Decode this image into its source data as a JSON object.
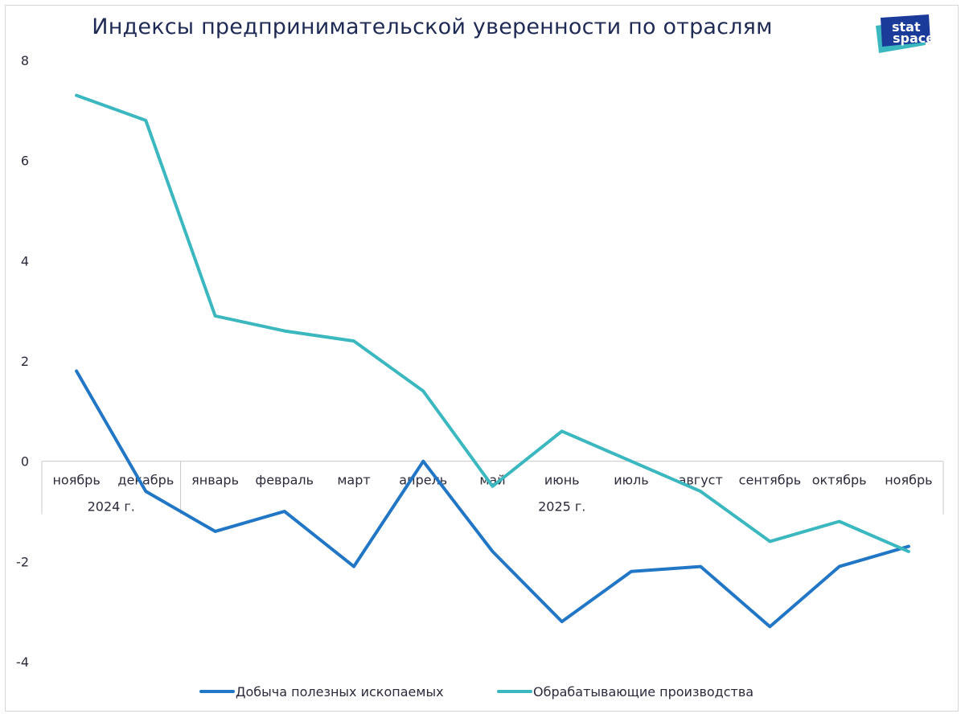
{
  "title": "Индексы предпринимательской уверенности по отраслям",
  "logo": {
    "line1": "stat",
    "line2": "space",
    "colors": [
      "#1b3b9a",
      "#2fb3c2"
    ]
  },
  "chart_data": {
    "type": "line",
    "title": "Индексы предпринимательской уверенности по отраслям",
    "categories": [
      "ноябрь",
      "декабрь",
      "январь",
      "февраль",
      "март",
      "апрель",
      "май",
      "июнь",
      "июль",
      "август",
      "сентябрь",
      "октябрь",
      "ноябрь"
    ],
    "year_groups": [
      {
        "label": "2024 г.",
        "span": 2
      },
      {
        "label": "2025 г.",
        "span": 11
      }
    ],
    "ylim": [
      -4,
      8
    ],
    "yticks": [
      -4,
      -2,
      0,
      2,
      4,
      6,
      8
    ],
    "series": [
      {
        "name": "Добыча полезных ископаемых",
        "color": "#2176c6",
        "values": [
          1.8,
          -0.6,
          -1.4,
          -1.0,
          -2.1,
          0.0,
          -1.8,
          -3.2,
          -2.2,
          -2.1,
          -3.3,
          -2.1,
          -1.7
        ]
      },
      {
        "name": "Обрабатывающие производства",
        "color": "#3bb8bf",
        "values": [
          7.3,
          6.8,
          2.9,
          2.6,
          2.4,
          1.4,
          -0.5,
          0.6,
          0.0,
          -0.6,
          -1.6,
          -1.2,
          -1.8
        ]
      }
    ],
    "xlabel": "",
    "ylabel": "",
    "legend": "bottom"
  }
}
